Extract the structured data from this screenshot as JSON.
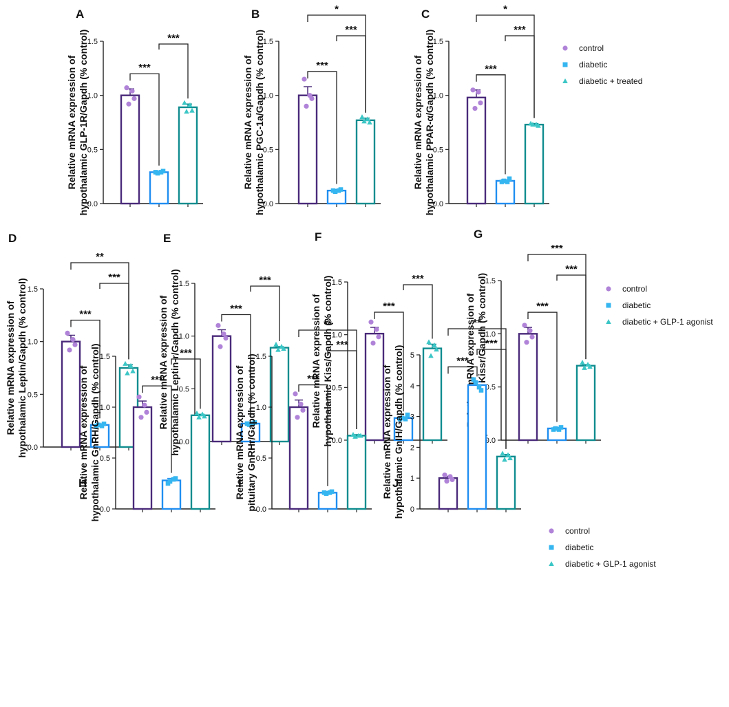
{
  "chart_data": [
    {
      "type": "bar",
      "panel": "A",
      "ylabel": [
        "Relative mRNA expression of",
        "hypothalamic GLP-1R/Gapdh (% control)"
      ],
      "ylim": [
        0,
        1.5
      ],
      "ticks": [
        "0.0",
        "0.5",
        "1.0",
        "1.5"
      ],
      "values": [
        1.0,
        0.29,
        0.89
      ],
      "errors": [
        0.06,
        0.01,
        0.03
      ],
      "points": [
        [
          1.07,
          0.97,
          0.92,
          1.04
        ],
        [
          0.29,
          0.3,
          0.28,
          0.29
        ],
        [
          0.93,
          0.86,
          0.85,
          0.91
        ]
      ],
      "sig": [
        {
          "a": 0,
          "b": 1,
          "label": "***"
        },
        {
          "a": 1,
          "b": 2,
          "label": "***"
        }
      ]
    },
    {
      "type": "bar",
      "panel": "B",
      "ylabel": [
        "Relative mRNA expression of",
        "hypothalamic PGC-1a/Gapdh (% control)"
      ],
      "ylim": [
        0,
        1.5
      ],
      "ticks": [
        "0.0",
        "0.5",
        "1.0",
        "1.5"
      ],
      "values": [
        1.0,
        0.12,
        0.77
      ],
      "errors": [
        0.08,
        0.01,
        0.02
      ],
      "points": [
        [
          1.15,
          0.97,
          0.9,
          1.0
        ],
        [
          0.12,
          0.13,
          0.11,
          0.12
        ],
        [
          0.8,
          0.75,
          0.76,
          0.78
        ]
      ],
      "sig": [
        {
          "a": 0,
          "b": 1,
          "label": "***"
        },
        {
          "a": 1,
          "b": 2,
          "label": "***"
        },
        {
          "a": 0,
          "b": 2,
          "label": "*"
        }
      ]
    },
    {
      "type": "bar",
      "panel": "C",
      "ylabel": [
        "Relative mRNA expression of",
        "hypothalamic PPAR-α/Gapdh (% control)"
      ],
      "ylim": [
        0,
        1.5
      ],
      "ticks": [
        "0.0",
        "0.5",
        "1.0",
        "1.5"
      ],
      "values": [
        0.98,
        0.21,
        0.73
      ],
      "errors": [
        0.07,
        0.01,
        0.01
      ],
      "points": [
        [
          1.05,
          0.93,
          0.88,
          1.03
        ],
        [
          0.2,
          0.23,
          0.21,
          0.2
        ],
        [
          0.74,
          0.72,
          0.73,
          0.73
        ]
      ],
      "sig": [
        {
          "a": 0,
          "b": 1,
          "label": "***"
        },
        {
          "a": 1,
          "b": 2,
          "label": "***"
        },
        {
          "a": 0,
          "b": 2,
          "label": "*"
        }
      ]
    },
    {
      "type": "bar",
      "panel": "D",
      "ylabel": [
        "Relative mRNA expression of",
        "hypothalamic Leptin/Gapdh (% control)"
      ],
      "ylim": [
        0,
        1.5
      ],
      "ticks": [
        "0.0",
        "0.5",
        "1.0",
        "1.5"
      ],
      "values": [
        1.0,
        0.21,
        0.75
      ],
      "errors": [
        0.06,
        0.01,
        0.03
      ],
      "points": [
        [
          1.08,
          0.97,
          0.92,
          1.02
        ],
        [
          0.2,
          0.22,
          0.21,
          0.2
        ],
        [
          0.79,
          0.72,
          0.7,
          0.77
        ]
      ],
      "sig": [
        {
          "a": 0,
          "b": 1,
          "label": "***"
        },
        {
          "a": 1,
          "b": 2,
          "label": "***"
        },
        {
          "a": 0,
          "b": 2,
          "label": "**"
        }
      ]
    },
    {
      "type": "bar",
      "panel": "E",
      "ylabel": [
        "Relative mRNA expression of",
        "hypothalamic Leptin-r/Gapdh (% control)"
      ],
      "ylim": [
        0,
        1.5
      ],
      "ticks": [
        "0.0",
        "0.5",
        "1.0",
        "1.5"
      ],
      "values": [
        1.0,
        0.17,
        0.89
      ],
      "errors": [
        0.06,
        0.01,
        0.01
      ],
      "points": [
        [
          1.1,
          0.98,
          0.9,
          1.02
        ],
        [
          0.17,
          0.18,
          0.16,
          0.17
        ],
        [
          0.92,
          0.88,
          0.87,
          0.9
        ]
      ],
      "sig": [
        {
          "a": 0,
          "b": 1,
          "label": "***"
        },
        {
          "a": 1,
          "b": 2,
          "label": "***"
        }
      ]
    },
    {
      "type": "bar",
      "panel": "F",
      "ylabel": [
        "Relative mRNA expression of",
        "hypothalamic Kiss/Gapdh (% control)"
      ],
      "ylim": [
        0,
        1.5
      ],
      "ticks": [
        "0.0",
        "0.5",
        "1.0",
        "1.5"
      ],
      "values": [
        1.01,
        0.21,
        0.87
      ],
      "errors": [
        0.06,
        0.01,
        0.04
      ],
      "points": [
        [
          1.12,
          0.98,
          0.92,
          1.05
        ],
        [
          0.2,
          0.24,
          0.21,
          0.2
        ],
        [
          0.93,
          0.86,
          0.8,
          0.9
        ]
      ],
      "sig": [
        {
          "a": 0,
          "b": 1,
          "label": "***"
        },
        {
          "a": 1,
          "b": 2,
          "label": "***"
        }
      ]
    },
    {
      "type": "bar",
      "panel": "G",
      "ylabel": [
        "Relative mRNA expression of",
        "hypothalamic Kissr/Gapdh (% control)"
      ],
      "ylim": [
        0,
        1.5
      ],
      "ticks": [
        "0.0",
        "0.5",
        "1.0",
        "1.5"
      ],
      "values": [
        1.0,
        0.11,
        0.7
      ],
      "errors": [
        0.06,
        0.01,
        0.01
      ],
      "points": [
        [
          1.08,
          0.97,
          0.92,
          1.03
        ],
        [
          0.1,
          0.12,
          0.11,
          0.1
        ],
        [
          0.73,
          0.69,
          0.68,
          0.71
        ]
      ],
      "sig": [
        {
          "a": 0,
          "b": 1,
          "label": "***"
        },
        {
          "a": 1,
          "b": 2,
          "label": "***"
        },
        {
          "a": 0,
          "b": 2,
          "label": "***"
        }
      ]
    },
    {
      "type": "bar",
      "panel": "H",
      "ylabel": [
        "Relative mRNA expression of",
        "hypothalamic GnRH/Gapdh (% control)"
      ],
      "ylim": [
        0,
        1.5
      ],
      "ticks": [
        "0.0",
        "0.5",
        "1.0",
        "1.5"
      ],
      "values": [
        1.0,
        0.28,
        0.92
      ],
      "errors": [
        0.06,
        0.02,
        0.01
      ],
      "points": [
        [
          1.1,
          0.95,
          0.9,
          1.02
        ],
        [
          0.25,
          0.3,
          0.27,
          0.29
        ],
        [
          0.94,
          0.91,
          0.9,
          0.93
        ]
      ],
      "sig": [
        {
          "a": 0,
          "b": 1,
          "label": "***"
        },
        {
          "a": 1,
          "b": 2,
          "label": "***"
        }
      ]
    },
    {
      "type": "bar",
      "panel": "I",
      "ylabel": [
        "Relative mRNA expression of",
        "pituitary GnRHr/Gapdh (% control)"
      ],
      "ylim": [
        0,
        1.5
      ],
      "ticks": [
        "0.0",
        "0.5",
        "1.0",
        "1.5"
      ],
      "values": [
        1.0,
        0.16,
        0.72
      ],
      "errors": [
        0.07,
        0.01,
        0.01
      ],
      "points": [
        [
          1.13,
          0.97,
          0.9,
          1.03
        ],
        [
          0.16,
          0.17,
          0.15,
          0.16
        ],
        [
          0.73,
          0.72,
          0.71,
          0.72
        ]
      ],
      "sig": [
        {
          "a": 0,
          "b": 1,
          "label": "***"
        },
        {
          "a": 1,
          "b": 2,
          "label": "***"
        },
        {
          "a": 0,
          "b": 2,
          "label": "**"
        }
      ]
    },
    {
      "type": "bar",
      "panel": "J",
      "ylabel": [
        "Relative mRNA expression of",
        "hypothalamic GnIH/Gapdh (% control)"
      ],
      "ylim": [
        0,
        5
      ],
      "ticks": [
        "0",
        "1",
        "2",
        "3",
        "4",
        "5"
      ],
      "values": [
        1.0,
        4.02,
        1.7
      ],
      "errors": [
        0.06,
        0.1,
        0.07
      ],
      "points": [
        [
          1.1,
          0.95,
          0.9,
          1.05
        ],
        [
          4.2,
          3.85,
          4.1,
          3.95
        ],
        [
          1.8,
          1.65,
          1.6,
          1.75
        ]
      ],
      "sig": [
        {
          "a": 0,
          "b": 1,
          "label": "***"
        },
        {
          "a": 1,
          "b": 2,
          "label": "***"
        },
        {
          "a": 0,
          "b": 2,
          "label": "**"
        }
      ]
    }
  ],
  "legends": [
    [
      "control",
      "diabetic",
      "diabetic + treated"
    ],
    [
      "control",
      "diabetic",
      "diabetic + GLP-1 agonist"
    ],
    [
      "control",
      "diabetic",
      "diabetic + GLP-1 agonist"
    ]
  ],
  "colors": {
    "control": "#4a2a7a",
    "diabetic": "#1f8ef1",
    "treated": "#0f8c8f",
    "control_point": "#b083d8",
    "diabetic_point": "#35b6f0",
    "treated_point": "#3cc6c6",
    "axis": "#222222"
  }
}
